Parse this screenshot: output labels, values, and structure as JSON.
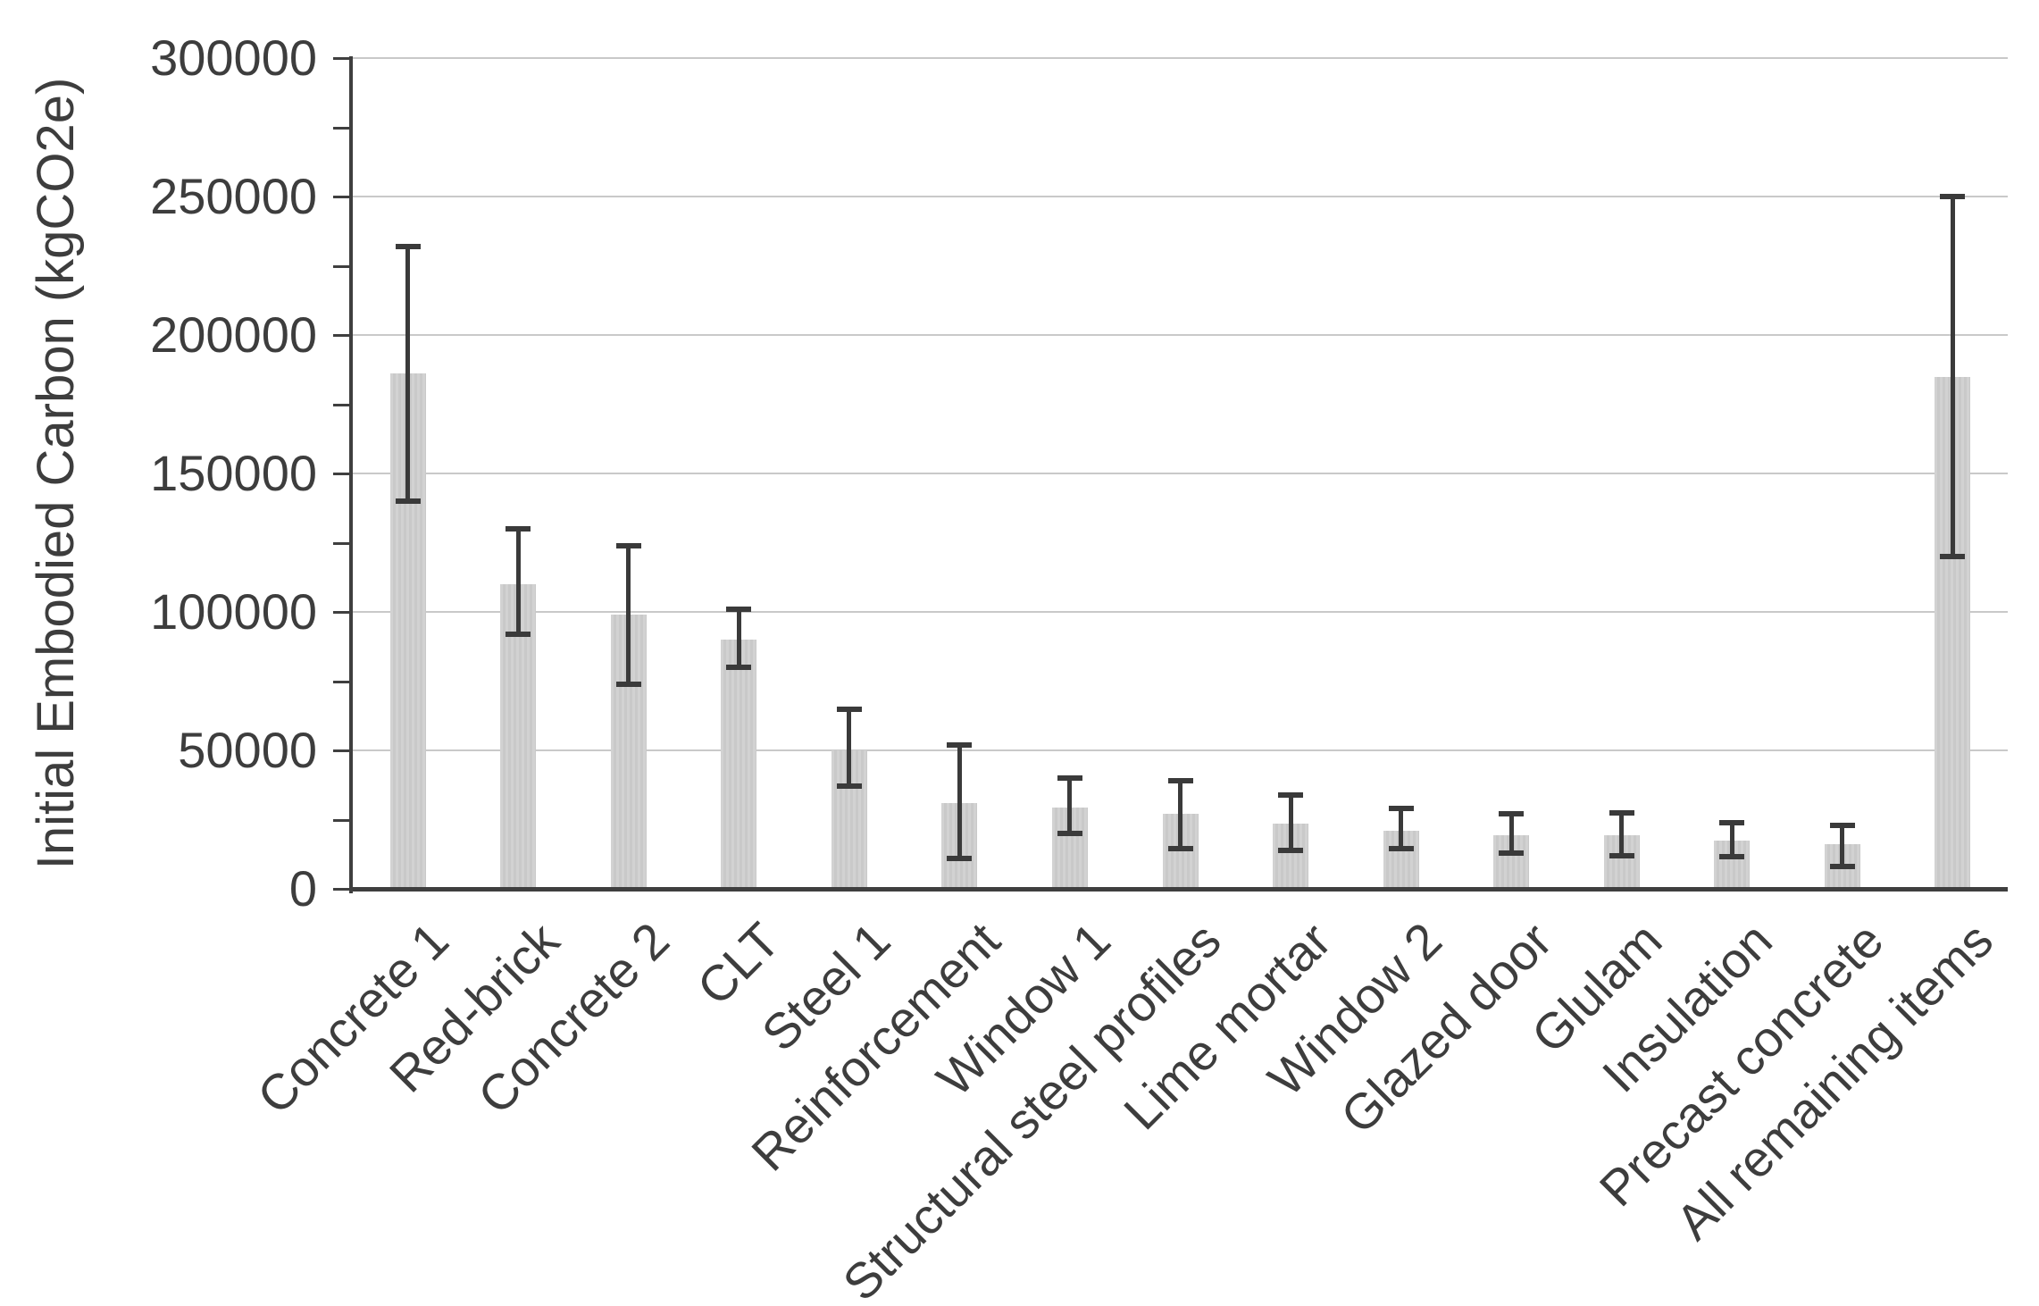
{
  "figure": {
    "y_axis_title": "Initial Embodied Carbon (kgCO2e)"
  },
  "chart_data": {
    "type": "bar",
    "title": "",
    "xlabel": "",
    "ylabel": "Initial Embodied Carbon (kgCO2e)",
    "ylim": [
      0,
      300000
    ],
    "ytick_interval": 50000,
    "minor_tick_interval": 25000,
    "grid": true,
    "legend_position": "none",
    "bar_color": "#cdcdcd",
    "error_bar_color": "#3a3a3a",
    "axis_color": "#3f3f3f",
    "gridline_color": "#c9c9c9",
    "categories": [
      "Concrete 1",
      "Red-brick",
      "Concrete 2",
      "CLT",
      "Steel 1",
      "Reinforcement",
      "Window 1",
      "Structural steel profiles",
      "Lime mortar",
      "Window 2",
      "Glazed door",
      "Glulam",
      "Insulation",
      "Precast concrete",
      "All remaining items"
    ],
    "values": [
      186000,
      110000,
      99000,
      90000,
      50000,
      31000,
      29500,
      27000,
      23500,
      21000,
      19500,
      19500,
      17500,
      16000,
      185000
    ],
    "error_low": [
      140000,
      92000,
      74000,
      80000,
      37000,
      11000,
      20000,
      14500,
      14000,
      14500,
      13000,
      12000,
      11500,
      8000,
      120000
    ],
    "error_high": [
      232000,
      130000,
      124000,
      101000,
      65000,
      52000,
      40000,
      39000,
      34000,
      29000,
      27000,
      27500,
      24000,
      23000,
      250000
    ]
  }
}
